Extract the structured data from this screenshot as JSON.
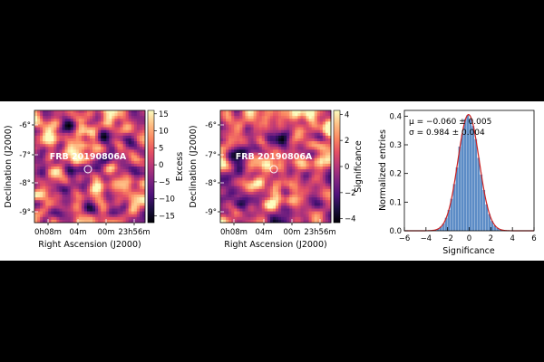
{
  "chart_data": [
    {
      "type": "heatmap",
      "source_label": "FRB 20190806A",
      "xlabel": "Right Ascension (J2000)",
      "ylabel": "Declination (J2000)",
      "x_ticks": [
        "0h08m",
        "04m",
        "00m",
        "23h56m"
      ],
      "y_ticks": [
        "-6°",
        "-7°",
        "-8°",
        "-9°"
      ],
      "colorbar": {
        "label": "Excess",
        "ticks": [
          15,
          10,
          5,
          0,
          -5,
          -10,
          -15
        ],
        "range": [
          -17,
          16
        ]
      },
      "colormap": "magma"
    },
    {
      "type": "heatmap",
      "source_label": "FRB 20190806A",
      "xlabel": "Right Ascension (J2000)",
      "ylabel": "Declination (J2000)",
      "x_ticks": [
        "0h08m",
        "04m",
        "00m",
        "23h56m"
      ],
      "y_ticks": [
        "-6°",
        "-7°",
        "-8°",
        "-9°"
      ],
      "colorbar": {
        "label": "Significance",
        "ticks": [
          4,
          2,
          0,
          -2,
          -4
        ],
        "range": [
          -4.3,
          4.3
        ]
      },
      "colormap": "magma"
    },
    {
      "type": "bar",
      "xlabel": "Significance",
      "ylabel": "Normalized entries",
      "xlim": [
        -6,
        6
      ],
      "ylim": [
        0,
        0.42
      ],
      "x_ticks": [
        "−6",
        "−4",
        "−2",
        "0",
        "2",
        "4",
        "6"
      ],
      "y_ticks": [
        "0.0",
        "0.1",
        "0.2",
        "0.3",
        "0.4"
      ],
      "annotation_mu": "μ = −0.060 ± 0.005",
      "annotation_sigma": "σ = 0.984 ± 0.004",
      "fit": {
        "mu": -0.06,
        "sigma": 0.984
      },
      "bin_width": 0.25,
      "colors": {
        "histogram": "#4a7fc0",
        "fit": "#cc2222"
      }
    }
  ]
}
